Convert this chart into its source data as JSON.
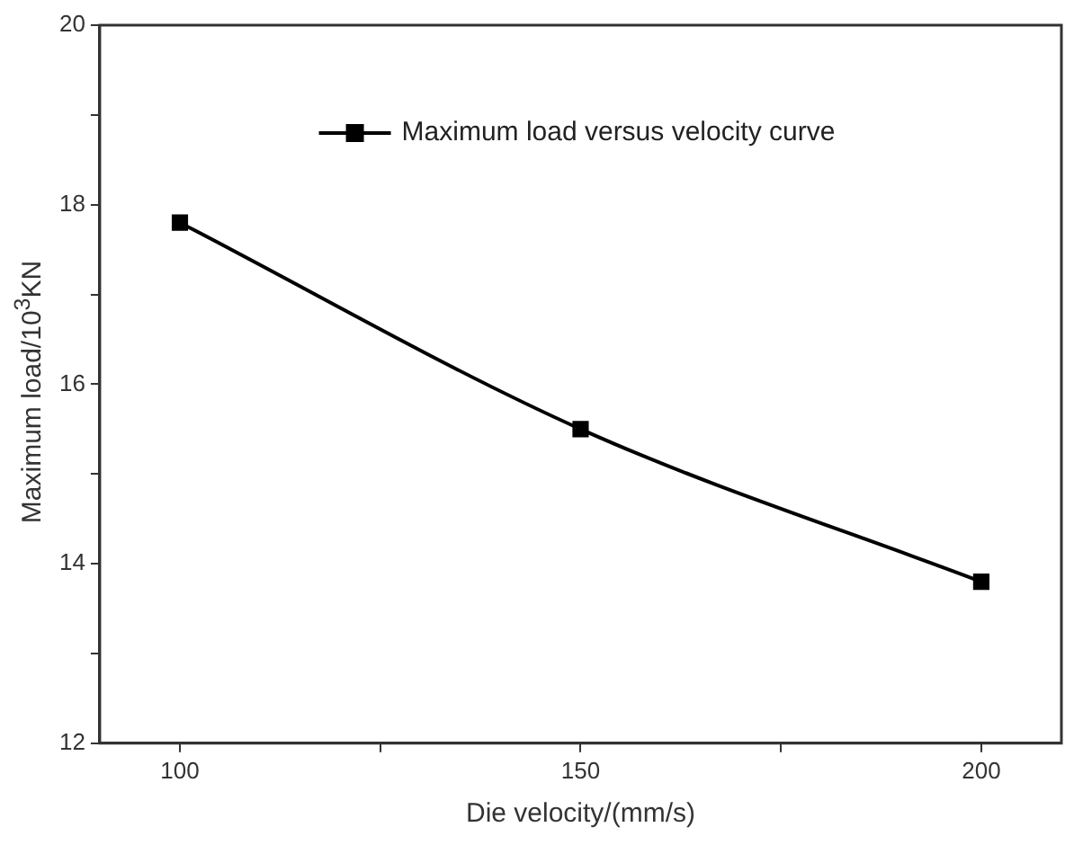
{
  "chart_data": {
    "type": "line",
    "xlabel": "Die velocity/(mm/s)",
    "ylabel": "Maximum load/10$^{3}$KN",
    "x": [
      100,
      150,
      200
    ],
    "series": [
      {
        "name": "Maximum load versus velocity curve",
        "color": "#000000",
        "values": [
          17.8,
          15.5,
          13.8
        ]
      }
    ],
    "xlim": [
      90,
      210
    ],
    "xticks": [
      100,
      {
        "value": 125,
        "label": null
      },
      150,
      {
        "value": 175,
        "label": null
      },
      200
    ],
    "ylim": [
      12,
      20
    ],
    "yticks": [
      12,
      {
        "value": 13,
        "label": null
      },
      14,
      {
        "value": 15,
        "label": null
      },
      16,
      {
        "value": 17,
        "label": null
      },
      18,
      {
        "value": 19,
        "label": null
      },
      20
    ],
    "grid": false,
    "legend": "top",
    "marker": "square",
    "line_style": "solid"
  }
}
